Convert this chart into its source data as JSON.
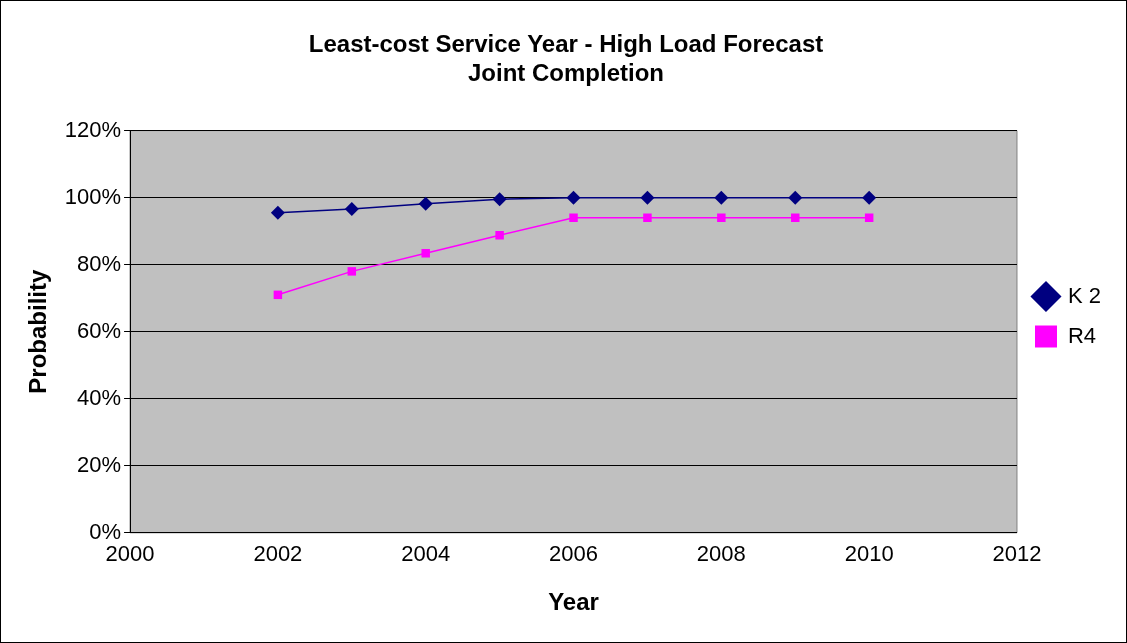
{
  "chart_data": {
    "type": "line",
    "title": [
      "Least-cost Service Year - High Load Forecast",
      "Joint Completion"
    ],
    "xlabel": "Year",
    "ylabel": "Probability",
    "x": [
      2002,
      2003,
      2004,
      2005,
      2006,
      2007,
      2008,
      2009,
      2010
    ],
    "series": [
      {
        "name": "K 2",
        "color": "#000080",
        "marker": "diamond",
        "values": [
          95.5,
          96.6,
          98.2,
          99.5,
          100,
          100,
          100,
          100,
          100
        ]
      },
      {
        "name": "R4",
        "color": "#ff00ff",
        "marker": "square",
        "values": [
          71,
          78,
          83.4,
          88.8,
          94,
          94,
          94,
          94,
          94
        ]
      }
    ],
    "xlim": [
      2000,
      2012
    ],
    "xticks": [
      2000,
      2002,
      2004,
      2006,
      2008,
      2010,
      2012
    ],
    "ylim": [
      0,
      120
    ],
    "yticks": [
      {
        "value": 0,
        "label": "0%"
      },
      {
        "value": 20,
        "label": "20%"
      },
      {
        "value": 40,
        "label": "40%"
      },
      {
        "value": 60,
        "label": "60%"
      },
      {
        "value": 80,
        "label": "80%"
      },
      {
        "value": 100,
        "label": "100%"
      },
      {
        "value": 120,
        "label": "120%"
      }
    ],
    "grid": "y",
    "legend": "right",
    "line_style": "solid"
  }
}
